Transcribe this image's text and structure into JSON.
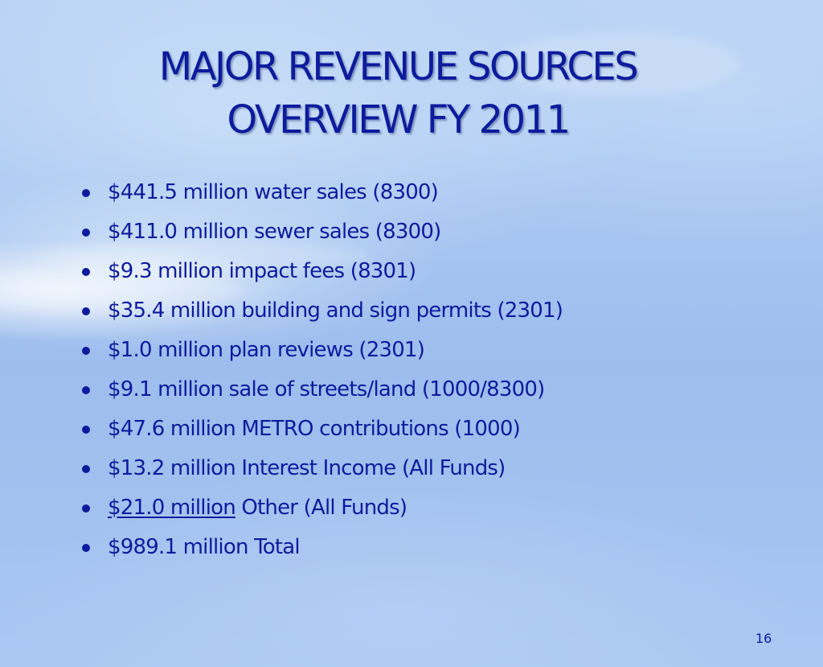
{
  "slide": {
    "title_line1": "MAJOR REVENUE SOURCES",
    "title_line2": "OVERVIEW FY 2011",
    "bullets": [
      {
        "text": "$441.5 million water sales (8300)"
      },
      {
        "text": "$411.0 million sewer sales (8300)"
      },
      {
        "text": "$9.3 million impact fees (8301)"
      },
      {
        "text": "$35.4 million building and sign permits (2301)"
      },
      {
        "text": "$1.0 million plan reviews (2301)"
      },
      {
        "text": "$9.1 million sale of streets/land (1000/8300)"
      },
      {
        "text": "$47.6 million METRO contributions (1000)"
      },
      {
        "text": "$13.2 million Interest Income (All Funds)"
      },
      {
        "underlined": "$21.0 million",
        "text": " Other (All Funds)"
      },
      {
        "text": "$989.1 million Total"
      }
    ],
    "page_number": "16"
  },
  "colors": {
    "text": "#0d1b9c",
    "background": "#a9c7f1"
  }
}
